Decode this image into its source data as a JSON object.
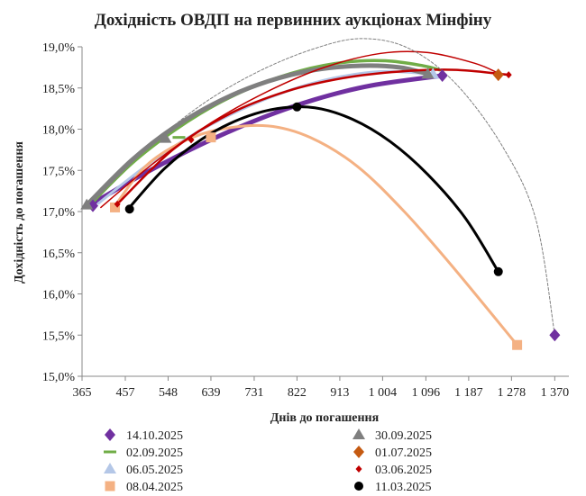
{
  "chart_data": {
    "type": "scatter",
    "title": "Дохідність ОВДП на первинних аукціонах Мінфіну",
    "xlabel": "Днів до погашення",
    "ylabel": "Дохідність до погашення",
    "xlim": [
      365,
      1400
    ],
    "ylim": [
      15.0,
      19.0
    ],
    "x_ticks": [
      365,
      457,
      548,
      639,
      731,
      822,
      913,
      1004,
      1096,
      1187,
      1278,
      1370
    ],
    "x_tick_labels": [
      "365",
      "457",
      "548",
      "639",
      "731",
      "822",
      "913",
      "1 004",
      "1 096",
      "1 187",
      "1 278",
      "1 370"
    ],
    "y_ticks": [
      15.0,
      15.5,
      16.0,
      16.5,
      17.0,
      17.5,
      18.0,
      18.5,
      19.0
    ],
    "y_tick_labels": [
      "15,0%",
      "15,5%",
      "16,0%",
      "16,5%",
      "17,0%",
      "17,5%",
      "18,0%",
      "18,5%",
      "19,0%"
    ],
    "grid": false,
    "legend_position": "bottom",
    "series": [
      {
        "name": "14.10.2025",
        "marker": "diamond",
        "color": "#7030a0",
        "points": [
          [
            388,
            17.07
          ],
          [
            1131,
            18.65
          ],
          [
            1370,
            15.5
          ]
        ],
        "trend": {
          "color": "#7030a0",
          "width": 5,
          "dash": "",
          "points": [
            [
              388,
              17.1
            ],
            [
              500,
              17.47
            ],
            [
              620,
              17.82
            ],
            [
              740,
              18.12
            ],
            [
              860,
              18.36
            ],
            [
              980,
              18.53
            ],
            [
              1131,
              18.65
            ]
          ]
        }
      },
      {
        "name": "02.09.2025",
        "marker": "dash",
        "color": "#70ad47",
        "points": [
          [
            571,
            17.9
          ]
        ],
        "trend": {
          "color": "#70ad47",
          "width": 3.5,
          "dash": "",
          "points": [
            [
              380,
              17.07
            ],
            [
              470,
              17.58
            ],
            [
              560,
              17.98
            ],
            [
              650,
              18.3
            ],
            [
              740,
              18.54
            ],
            [
              830,
              18.71
            ],
            [
              920,
              18.81
            ],
            [
              1010,
              18.83
            ],
            [
              1090,
              18.77
            ],
            [
              1125,
              18.72
            ]
          ]
        }
      },
      {
        "name": "06.05.2025",
        "marker": "triangle",
        "color": "#b4c7e7",
        "points": [
          [
            1111,
            18.67
          ]
        ],
        "trend": {
          "color": "#b4c7e7",
          "width": 3,
          "dash": "",
          "points": [
            [
              400,
              17.1
            ],
            [
              500,
              17.55
            ],
            [
              600,
              17.93
            ],
            [
              700,
              18.23
            ],
            [
              800,
              18.46
            ],
            [
              900,
              18.62
            ],
            [
              1000,
              18.7
            ],
            [
              1111,
              18.67
            ]
          ]
        }
      },
      {
        "name": "08.04.2025",
        "marker": "square",
        "color": "#f4b183",
        "points": [
          [
            435,
            17.05
          ],
          [
            639,
            17.9
          ],
          [
            1290,
            15.38
          ]
        ],
        "trend": {
          "color": "#f4b183",
          "width": 3,
          "dash": "",
          "points": [
            [
              435,
              17.07
            ],
            [
              500,
              17.55
            ],
            [
              580,
              17.85
            ],
            [
              660,
              18.0
            ],
            [
              760,
              18.04
            ],
            [
              850,
              17.9
            ],
            [
              950,
              17.55
            ],
            [
              1050,
              17.0
            ],
            [
              1150,
              16.35
            ],
            [
              1290,
              15.38
            ]
          ]
        }
      },
      {
        "name": "30.09.2025",
        "marker": "triangle",
        "color": "#7f7f7f",
        "points": [
          [
            375,
            17.08
          ],
          [
            542,
            17.89
          ],
          [
            1100,
            18.67
          ]
        ],
        "trend": {
          "color": "#7f7f7f",
          "width": 5,
          "dash": "",
          "points": [
            [
              375,
              17.08
            ],
            [
              470,
              17.62
            ],
            [
              560,
              18.02
            ],
            [
              660,
              18.35
            ],
            [
              760,
              18.58
            ],
            [
              860,
              18.72
            ],
            [
              960,
              18.77
            ],
            [
              1040,
              18.75
            ],
            [
              1100,
              18.67
            ]
          ]
        }
      },
      {
        "name": "01.07.2025",
        "marker": "diamond",
        "color": "#c55a11",
        "points": [
          [
            1250,
            18.66
          ]
        ],
        "trend": {
          "color": "#c00000",
          "width": 1.5,
          "dash": "",
          "points": [
            [
              405,
              17.05
            ],
            [
              520,
              17.6
            ],
            [
              640,
              18.08
            ],
            [
              760,
              18.46
            ],
            [
              880,
              18.75
            ],
            [
              1000,
              18.92
            ],
            [
              1100,
              18.93
            ],
            [
              1200,
              18.8
            ],
            [
              1250,
              18.68
            ]
          ]
        }
      },
      {
        "name": "03.06.2025",
        "marker": "diamond-small",
        "color": "#c00000",
        "points": [
          [
            440,
            17.09
          ],
          [
            597,
            17.87
          ],
          [
            1272,
            18.66
          ]
        ],
        "trend": {
          "color": "#c00000",
          "width": 2.5,
          "dash": "",
          "points": [
            [
              440,
              17.09
            ],
            [
              560,
              17.76
            ],
            [
              680,
              18.19
            ],
            [
              800,
              18.46
            ],
            [
              920,
              18.62
            ],
            [
              1040,
              18.7
            ],
            [
              1160,
              18.72
            ],
            [
              1272,
              18.66
            ]
          ]
        }
      },
      {
        "name": "11.03.2025",
        "marker": "circle",
        "color": "#000000",
        "points": [
          [
            466,
            17.03
          ],
          [
            822,
            18.27
          ],
          [
            1250,
            16.27
          ]
        ],
        "trend": {
          "color": "#000000",
          "width": 3,
          "dash": "",
          "points": [
            [
              466,
              17.05
            ],
            [
              540,
              17.52
            ],
            [
              620,
              17.88
            ],
            [
              700,
              18.12
            ],
            [
              780,
              18.25
            ],
            [
              860,
              18.26
            ],
            [
              940,
              18.12
            ],
            [
              1020,
              17.85
            ],
            [
              1100,
              17.45
            ],
            [
              1180,
              16.92
            ],
            [
              1250,
              16.27
            ]
          ]
        }
      },
      {
        "name": "",
        "marker": "none",
        "color": "#7f7f7f",
        "points": [],
        "trend": {
          "color": "#7f7f7f",
          "width": 1,
          "dash": "3,2",
          "points": [
            [
              380,
              17.07
            ],
            [
              500,
              17.75
            ],
            [
              620,
              18.3
            ],
            [
              740,
              18.7
            ],
            [
              860,
              18.98
            ],
            [
              960,
              19.1
            ],
            [
              1060,
              18.98
            ],
            [
              1160,
              18.55
            ],
            [
              1260,
              17.78
            ],
            [
              1330,
              16.9
            ],
            [
              1370,
              15.5
            ]
          ]
        }
      }
    ]
  }
}
